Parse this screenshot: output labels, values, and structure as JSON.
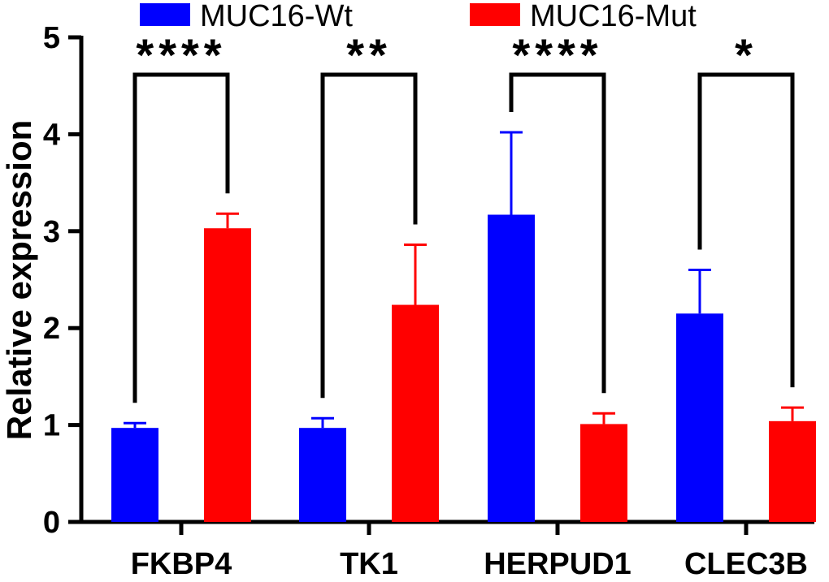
{
  "chart_data": {
    "type": "bar",
    "title": "",
    "xlabel": "",
    "ylabel": "Relative  expression",
    "ylim": [
      0,
      5
    ],
    "yticks": [
      "0",
      "1",
      "2",
      "3",
      "4",
      "5"
    ],
    "categories": [
      "FKBP4",
      "TK1",
      "HERPUD1",
      "CLEC3B"
    ],
    "series": [
      {
        "name": "MUC16-Wt",
        "color": "#0000ff",
        "values": [
          0.97,
          0.97,
          3.17,
          2.15
        ],
        "errors": [
          0.05,
          0.1,
          0.85,
          0.45
        ]
      },
      {
        "name": "MUC16-Mut",
        "color": "#ff0000",
        "values": [
          3.03,
          2.24,
          1.01,
          1.04
        ],
        "errors": [
          0.15,
          0.62,
          0.11,
          0.14
        ]
      }
    ],
    "significance": [
      "****",
      "**",
      "****",
      "*"
    ],
    "legend_position": "top"
  }
}
